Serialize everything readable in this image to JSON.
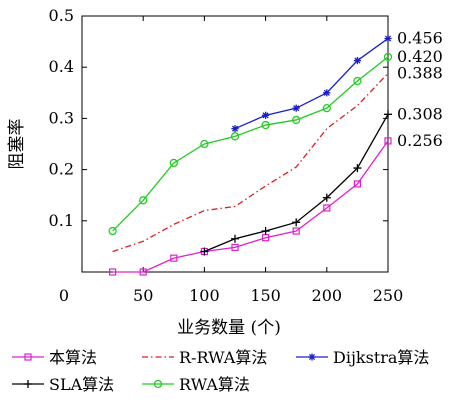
{
  "chart_data": {
    "type": "line",
    "xlabel": "业务数量 (个)",
    "ylabel": "阻塞率",
    "xlim": [
      0,
      250
    ],
    "ylim": [
      0,
      0.5
    ],
    "x_ticks": [
      {
        "value": 0,
        "label": "0"
      },
      {
        "value": 50,
        "label": "50"
      },
      {
        "value": 100,
        "label": "100"
      },
      {
        "value": 150,
        "label": "150"
      },
      {
        "value": 200,
        "label": "200"
      },
      {
        "value": 250,
        "label": "250"
      }
    ],
    "y_ticks": [
      {
        "value": 0.1,
        "label": "0.1"
      },
      {
        "value": 0.2,
        "label": "0.2"
      },
      {
        "value": 0.3,
        "label": "0.3"
      },
      {
        "value": 0.4,
        "label": "0.4"
      },
      {
        "value": 0.5,
        "label": "0.5"
      }
    ],
    "grid": false,
    "legend_position": "bottom",
    "series": [
      {
        "name": "本算法",
        "color": "#e020d0",
        "marker": "square",
        "dash": "solid",
        "points": [
          [
            25,
            0.0
          ],
          [
            50,
            0.0
          ],
          [
            75,
            0.027
          ],
          [
            100,
            0.04
          ],
          [
            125,
            0.048
          ],
          [
            150,
            0.067
          ],
          [
            175,
            0.08
          ],
          [
            200,
            0.125
          ],
          [
            225,
            0.172
          ],
          [
            250,
            0.256
          ]
        ]
      },
      {
        "name": "R-RWA算法",
        "color": "#d82020",
        "marker": "none",
        "dash": "dashdot",
        "points": [
          [
            25,
            0.04
          ],
          [
            50,
            0.06
          ],
          [
            75,
            0.093
          ],
          [
            100,
            0.12
          ],
          [
            125,
            0.128
          ],
          [
            150,
            0.168
          ],
          [
            175,
            0.205
          ],
          [
            200,
            0.28
          ],
          [
            225,
            0.325
          ],
          [
            250,
            0.388
          ]
        ]
      },
      {
        "name": "Dijkstra算法",
        "color": "#1a20c8",
        "marker": "star",
        "dash": "solid",
        "points": [
          [
            125,
            0.28
          ],
          [
            150,
            0.306
          ],
          [
            175,
            0.32
          ],
          [
            200,
            0.35
          ],
          [
            225,
            0.413
          ],
          [
            250,
            0.456
          ]
        ]
      },
      {
        "name": "SLA算法",
        "color": "#000000",
        "marker": "plus",
        "dash": "solid",
        "points": [
          [
            100,
            0.04
          ],
          [
            125,
            0.065
          ],
          [
            150,
            0.08
          ],
          [
            175,
            0.097
          ],
          [
            200,
            0.145
          ],
          [
            225,
            0.203
          ],
          [
            250,
            0.308
          ]
        ]
      },
      {
        "name": "RWA算法",
        "color": "#22cc22",
        "marker": "circle",
        "dash": "solid",
        "points": [
          [
            25,
            0.08
          ],
          [
            50,
            0.14
          ],
          [
            75,
            0.213
          ],
          [
            100,
            0.25
          ],
          [
            125,
            0.265
          ],
          [
            150,
            0.287
          ],
          [
            175,
            0.297
          ],
          [
            200,
            0.32
          ],
          [
            225,
            0.373
          ],
          [
            250,
            0.42
          ]
        ]
      }
    ],
    "end_labels": [
      {
        "value": 0.456,
        "text": "0.456"
      },
      {
        "value": 0.42,
        "text": "0.420"
      },
      {
        "value": 0.388,
        "text": "0.388"
      },
      {
        "value": 0.308,
        "text": "0.308"
      },
      {
        "value": 0.256,
        "text": "0.256"
      }
    ]
  }
}
